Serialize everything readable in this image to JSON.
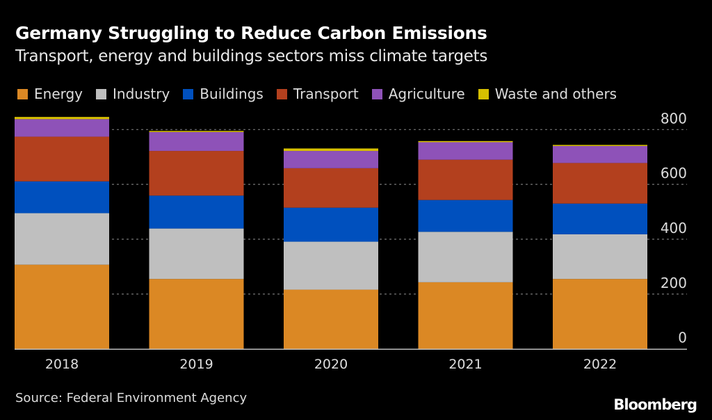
{
  "chart_data": {
    "type": "bar",
    "stacked": true,
    "title": "Germany Struggling to Reduce Carbon Emissions",
    "subtitle": "Transport, energy and buildings sectors miss climate targets",
    "categories": [
      "2018",
      "2019",
      "2020",
      "2021",
      "2022"
    ],
    "series": [
      {
        "name": "Energy",
        "color": "#DB8824",
        "values": [
          307,
          255,
          216,
          243,
          255
        ]
      },
      {
        "name": "Industry",
        "color": "#BFBFBF",
        "values": [
          188,
          184,
          175,
          184,
          163
        ]
      },
      {
        "name": "Buildings",
        "color": "#0050BE",
        "values": [
          116,
          120,
          124,
          116,
          112
        ]
      },
      {
        "name": "Transport",
        "color": "#B3401E",
        "values": [
          163,
          163,
          144,
          147,
          148
        ]
      },
      {
        "name": "Agriculture",
        "color": "#8E52B8",
        "values": [
          64,
          69,
          63,
          64,
          62
        ]
      },
      {
        "name": "Waste and others",
        "color": "#D7C000",
        "values": [
          8,
          4,
          9,
          4,
          4
        ]
      }
    ],
    "ylim": [
      0,
      800
    ],
    "yticks": [
      "0",
      "200",
      "400",
      "600",
      "800"
    ],
    "yaxis_position": "right",
    "grid": true,
    "legend_position": "top-left",
    "source": "Source: Federal Environment Agency",
    "logo": "Bloomberg"
  }
}
